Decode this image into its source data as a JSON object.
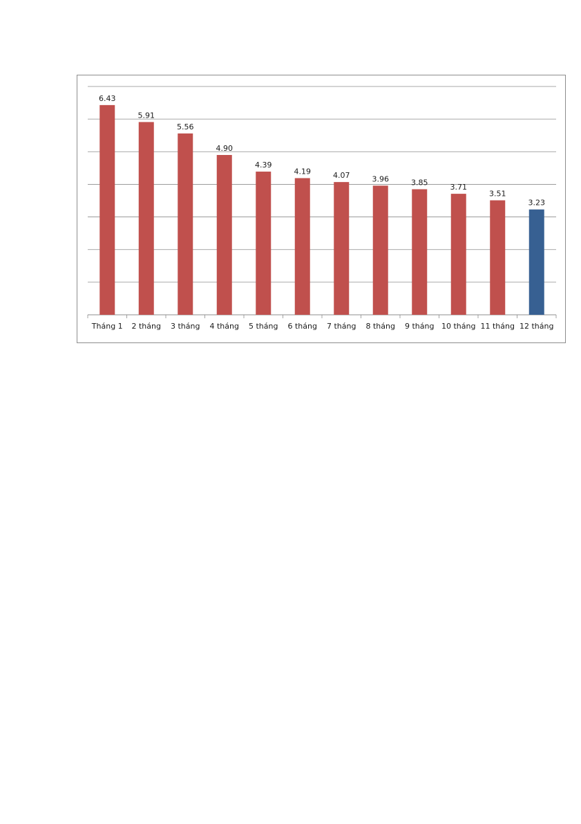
{
  "chart_data": {
    "type": "bar",
    "title": "",
    "xlabel": "",
    "ylabel": "",
    "categories": [
      "Tháng 1",
      "2 tháng",
      "3 tháng",
      "4 tháng",
      "5 tháng",
      "6 tháng",
      "7 tháng",
      "8 tháng",
      "9 tháng",
      "10 tháng",
      "11 tháng",
      "12 tháng"
    ],
    "values": [
      6.43,
      5.91,
      5.56,
      4.9,
      4.39,
      4.19,
      4.07,
      3.96,
      3.85,
      3.71,
      3.51,
      3.23
    ],
    "value_labels": [
      "6.43",
      "5.91",
      "5.56",
      "4.90",
      "4.39",
      "4.19",
      "4.07",
      "3.96",
      "3.85",
      "3.71",
      "3.51",
      "3.23"
    ],
    "ylim": [
      0,
      7
    ],
    "y_gridline_step": 1,
    "grid": true,
    "axis_tick_labels_visible": false,
    "legend": "none",
    "colors": {
      "default_bar": "#c0504d",
      "highlight_bar": "#376092",
      "gridline": "#8c8c8c",
      "border": "#8c8c8c"
    },
    "highlight_category": "12 tháng"
  }
}
